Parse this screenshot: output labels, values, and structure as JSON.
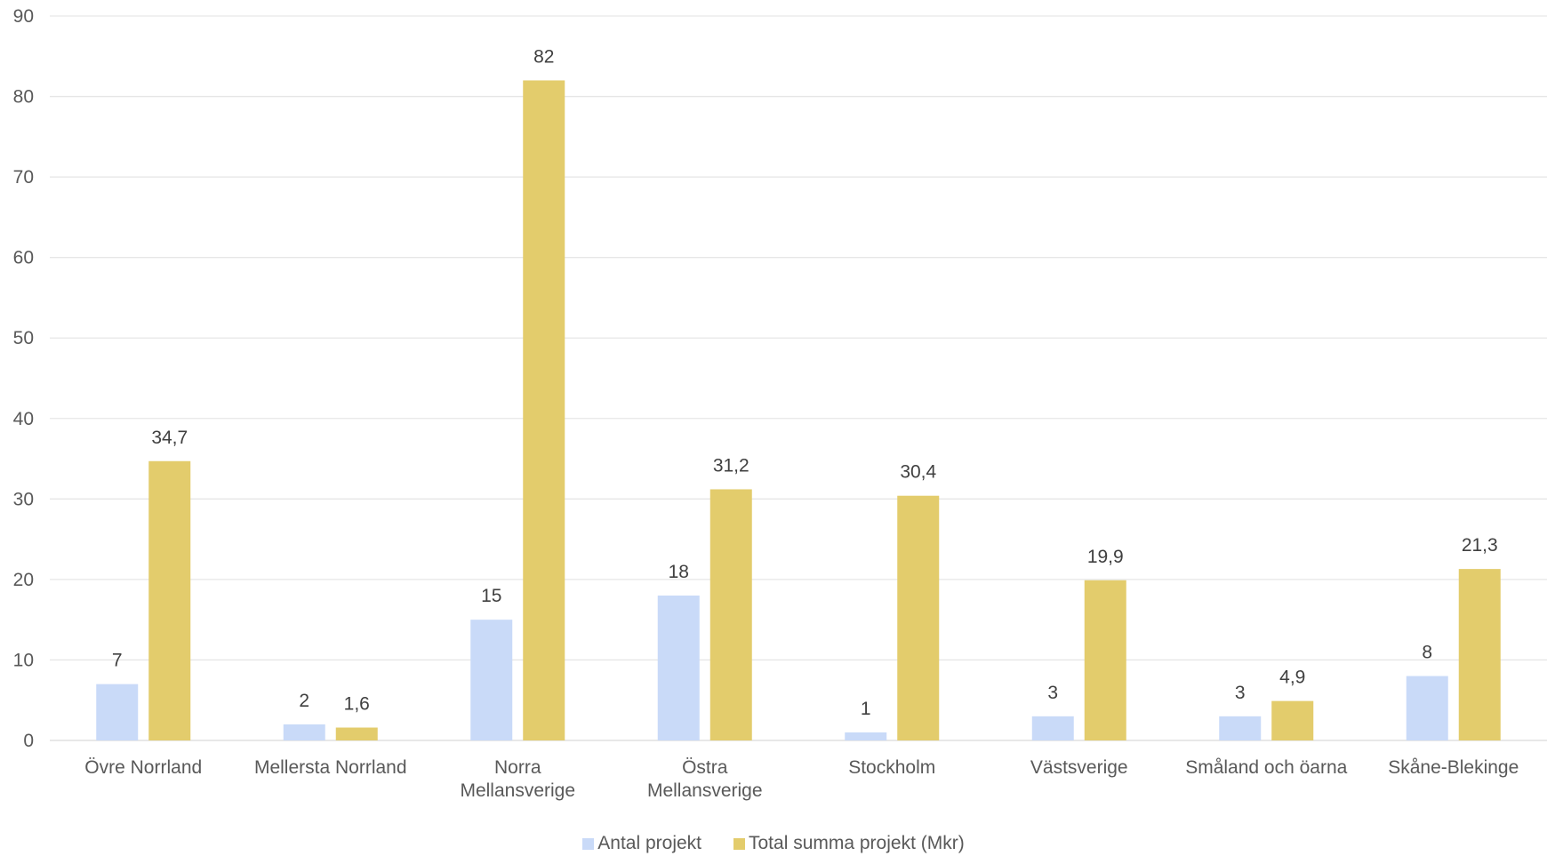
{
  "chart_data": {
    "type": "bar",
    "categories": [
      [
        "Övre Norrland"
      ],
      [
        "Mellersta Norrland"
      ],
      [
        "Norra",
        "Mellansverige"
      ],
      [
        "Östra",
        "Mellansverige"
      ],
      [
        "Stockholm"
      ],
      [
        "Västsverige"
      ],
      [
        "Småland och öarna"
      ],
      [
        "Skåne-Blekinge"
      ]
    ],
    "series": [
      {
        "name": "Antal projekt",
        "color": "#c9daf8",
        "values": [
          7,
          2,
          15,
          18,
          1,
          3,
          3,
          8
        ],
        "labels": [
          "7",
          "2",
          "15",
          "18",
          "1",
          "3",
          "3",
          "8"
        ]
      },
      {
        "name": "Total summa projekt (Mkr)",
        "color": "#e3cc6c",
        "values": [
          34.7,
          1.6,
          82,
          31.2,
          30.4,
          19.9,
          4.9,
          21.3
        ],
        "labels": [
          "34,7",
          "1,6",
          "82",
          "31,2",
          "30,4",
          "19,9",
          "4,9",
          "21,3"
        ]
      }
    ],
    "ylim": [
      0,
      90
    ],
    "yticks": [
      0,
      10,
      20,
      30,
      40,
      50,
      60,
      70,
      80,
      90
    ],
    "grid": true,
    "legend_position": "bottom"
  }
}
